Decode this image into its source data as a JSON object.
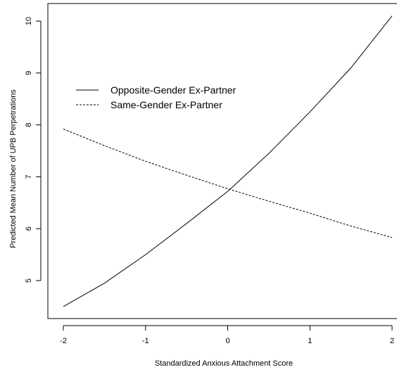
{
  "chart_data": {
    "type": "line",
    "title": "",
    "xlabel": "Standardized Anxious Attachment Score",
    "ylabel": "Predicted Mean Number of UPB Perpetrations",
    "xlim": [
      -2,
      2
    ],
    "ylim": [
      4.5,
      10.1
    ],
    "x_ticks": [
      -2,
      -1,
      0,
      1,
      2
    ],
    "x_tick_labels": [
      "-2",
      "-1",
      "0",
      "1",
      "2"
    ],
    "y_ticks": [
      5,
      6,
      7,
      8,
      9,
      10
    ],
    "y_tick_labels": [
      "5",
      "6",
      "7",
      "8",
      "9",
      "10"
    ],
    "grid": false,
    "legend_position": "upper-left",
    "series": [
      {
        "name": "Opposite-Gender Ex-Partner",
        "line_style": "solid",
        "color": "#000000",
        "x": [
          -2,
          -1.5,
          -1,
          -0.5,
          0,
          0.5,
          1,
          1.5,
          2
        ],
        "y": [
          4.5,
          4.95,
          5.5,
          6.1,
          6.72,
          7.45,
          8.25,
          9.1,
          10.1
        ]
      },
      {
        "name": "Same-Gender Ex-Partner",
        "line_style": "dashed",
        "color": "#000000",
        "x": [
          -2,
          -1.5,
          -1,
          -0.5,
          0,
          0.5,
          1,
          1.5,
          2
        ],
        "y": [
          7.92,
          7.6,
          7.3,
          7.03,
          6.77,
          6.53,
          6.3,
          6.05,
          5.83
        ]
      }
    ]
  }
}
